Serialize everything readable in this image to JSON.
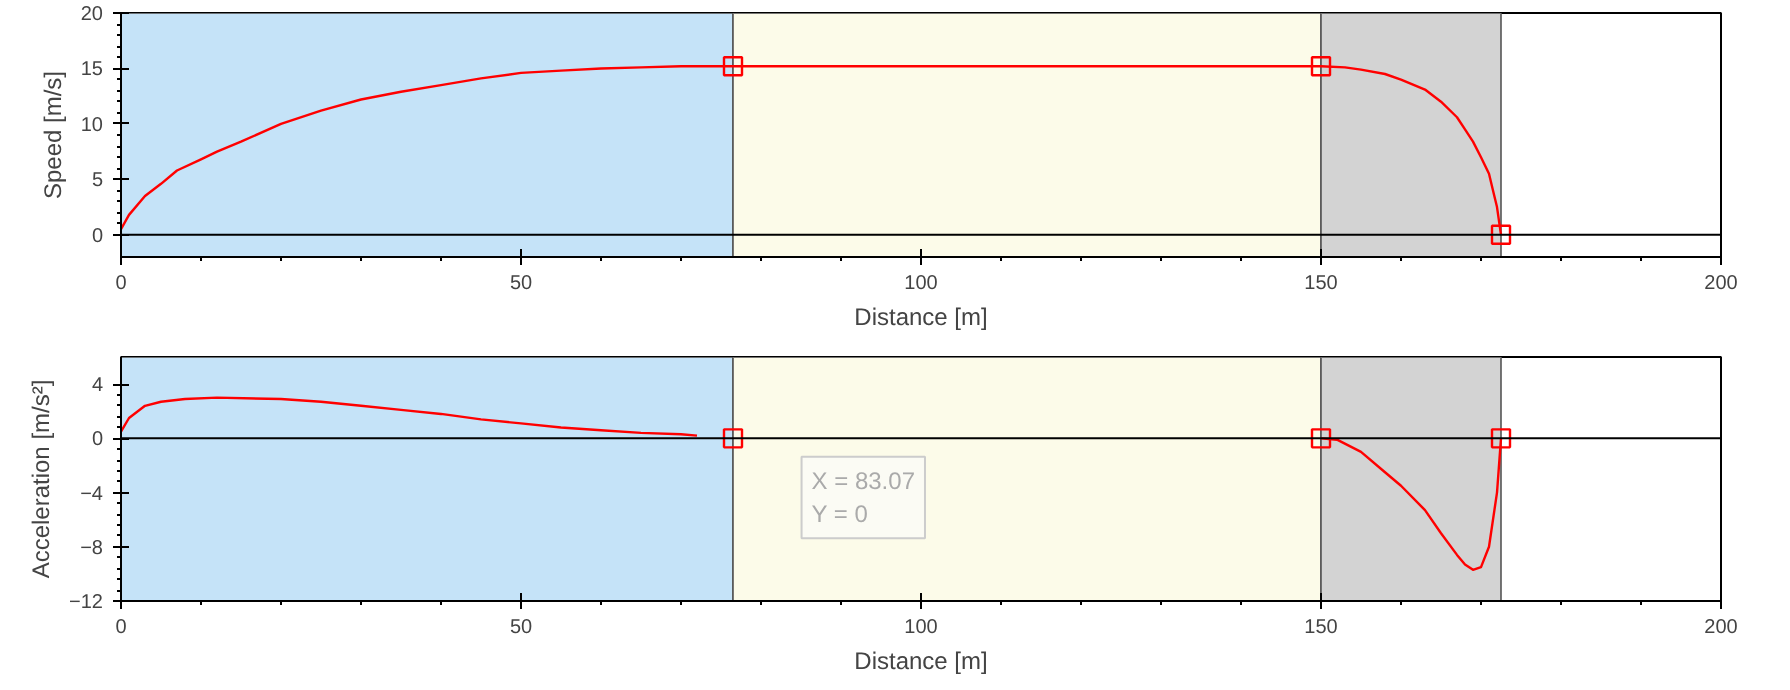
{
  "chart_data": [
    {
      "type": "line",
      "xlabel": "Distance [m]",
      "ylabel": "Speed [m/s]",
      "xlim": [
        0,
        200
      ],
      "xticks": [
        0,
        50,
        100,
        150,
        200
      ],
      "ylim": [
        -2,
        20
      ],
      "yticks": [
        0,
        5,
        10,
        15,
        20
      ],
      "grid": false,
      "line_style": "solid",
      "series": [
        {
          "color": "#ff0000",
          "x": [
            0,
            1,
            3,
            5,
            7,
            10,
            12,
            15,
            20,
            25,
            30,
            35,
            40,
            45,
            50,
            55,
            60,
            65,
            70,
            76.5,
            150,
            153,
            155,
            158,
            160,
            163,
            165,
            167,
            168,
            169,
            170,
            171,
            171.5,
            172,
            172.5
          ],
          "values": [
            0.5,
            1.8,
            3.5,
            4.6,
            5.8,
            6.8,
            7.5,
            8.4,
            10,
            11.2,
            12.2,
            12.9,
            13.5,
            14.1,
            14.6,
            14.8,
            15,
            15.1,
            15.2,
            15.2,
            15.2,
            15.1,
            14.9,
            14.5,
            14,
            13.1,
            12,
            10.6,
            9.5,
            8.4,
            7,
            5.5,
            4,
            2.5,
            0
          ]
        },
        {
          "type": "scatter",
          "color": "#ff0000",
          "marker": "square",
          "x": [
            76.5,
            150,
            172.5
          ],
          "values": [
            15.2,
            15.2,
            0
          ]
        }
      ],
      "bands": [
        {
          "axis": "x",
          "from": 0,
          "to": 76.5,
          "color": "#c5e3f8"
        },
        {
          "axis": "x",
          "from": 76.5,
          "to": 150,
          "color": "#fcfbe9"
        },
        {
          "axis": "x",
          "from": 150,
          "to": 172.5,
          "color": "#d3d3d3"
        }
      ],
      "ref_lines": [
        {
          "axis": "y",
          "value": 0,
          "color": "#000000"
        }
      ]
    },
    {
      "type": "line",
      "xlabel": "Distance [m]",
      "ylabel": "Acceleration [m/s²]",
      "xlim": [
        0,
        200
      ],
      "xticks": [
        0,
        50,
        100,
        150,
        200
      ],
      "ylim": [
        -12,
        6
      ],
      "yticks": [
        4,
        0,
        -4,
        -8,
        -12
      ],
      "grid": false,
      "line_style": "solid",
      "series": [
        {
          "color": "#ff0000",
          "x": [
            0,
            1,
            3,
            5,
            8,
            12,
            20,
            25,
            30,
            35,
            40,
            45,
            50,
            55,
            60,
            65,
            70,
            72
          ],
          "values": [
            0.5,
            1.5,
            2.4,
            2.7,
            2.9,
            3,
            2.9,
            2.7,
            2.4,
            2.1,
            1.8,
            1.4,
            1.1,
            0.8,
            0.6,
            0.4,
            0.3,
            0.2
          ]
        },
        {
          "color": "#ff0000",
          "x": [
            150,
            152,
            155,
            158,
            160,
            163,
            165,
            167,
            168,
            169,
            170,
            171,
            172,
            172.5
          ],
          "values": [
            0,
            -0.1,
            -1,
            -2.5,
            -3.5,
            -5.3,
            -7,
            -8.6,
            -9.3,
            -9.7,
            -9.5,
            -8,
            -4,
            0
          ]
        },
        {
          "type": "scatter",
          "color": "#ff0000",
          "marker": "square",
          "x": [
            76.5,
            150,
            172.5
          ],
          "values": [
            0,
            0,
            0
          ]
        }
      ],
      "bands": [
        {
          "axis": "x",
          "from": 0,
          "to": 76.5,
          "color": "#c5e3f8"
        },
        {
          "axis": "x",
          "from": 76.5,
          "to": 150,
          "color": "#fcfbe9"
        },
        {
          "axis": "x",
          "from": 150,
          "to": 172.5,
          "color": "#d3d3d3"
        }
      ],
      "ref_lines": [
        {
          "axis": "y",
          "value": 0,
          "color": "#000000"
        }
      ],
      "annotations": [
        {
          "text": "X = 83.07\nY = 0",
          "x": 83.07,
          "y": 0
        }
      ]
    }
  ]
}
